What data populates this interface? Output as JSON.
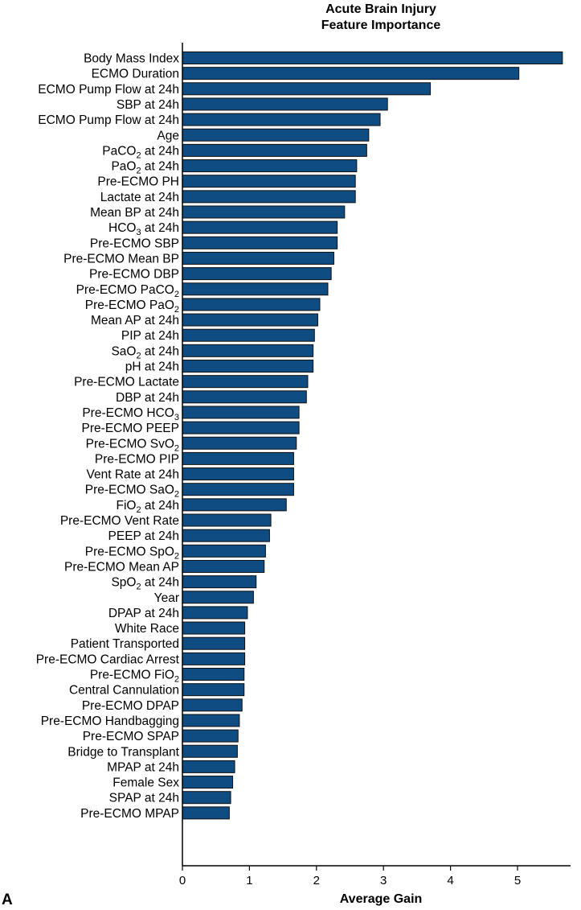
{
  "panel_label": "A",
  "chart_data": {
    "type": "bar",
    "orientation": "horizontal",
    "title_lines": [
      "Acute Brain Injury",
      "Feature Importance"
    ],
    "xlabel": "Average Gain",
    "ylabel": "",
    "xlim": [
      0,
      5.75
    ],
    "xticks": [
      "0",
      "1",
      "2",
      "3",
      "4",
      "5"
    ],
    "grid": false,
    "bar_color": "#0f4c81",
    "bar_edge_color": "#111111",
    "categories": [
      "Body Mass Index",
      "ECMO Duration",
      "ECMO Pump Flow at 24h",
      "SBP at 24h",
      "ECMO Pump Flow at 24h",
      "Age",
      "PaCO2 at 24h",
      "PaO2 at 24h",
      "Pre-ECMO PH",
      "Lactate at 24h",
      "Mean BP at 24h",
      "HCO3 at 24h",
      "Pre-ECMO SBP",
      "Pre-ECMO Mean BP",
      "Pre-ECMO DBP",
      "Pre-ECMO PaCO2",
      "Pre-ECMO PaO2",
      "Mean AP at 24h",
      "PIP at 24h",
      "SaO2 at 24h",
      "pH at 24h",
      "Pre-ECMO Lactate",
      "DBP at 24h",
      "Pre-ECMO HCO3",
      "Pre-ECMO PEEP",
      "Pre-ECMO SvO2",
      "Pre-ECMO PIP",
      "Vent Rate at 24h",
      "Pre-ECMO SaO2",
      "FiO2 at 24h",
      "Pre-ECMO Vent Rate",
      "PEEP at 24h",
      "Pre-ECMO SpO2",
      "Pre-ECMO Mean AP",
      "SpO2 at 24h",
      "Year",
      "DPAP at 24h",
      "White Race",
      "Patient Transported",
      "Pre-ECMO Cardiac Arrest",
      "Pre-ECMO FiO2",
      "Central Cannulation",
      "Pre-ECMO DPAP",
      "Pre-ECMO Handbagging",
      "Pre-ECMO SPAP",
      "Bridge to Transplant",
      "MPAP at 24h",
      "Female Sex",
      "SPAP at 24h",
      "Pre-ECMO MPAP"
    ],
    "values": [
      5.67,
      5.02,
      3.7,
      3.06,
      2.95,
      2.78,
      2.75,
      2.6,
      2.58,
      2.58,
      2.42,
      2.31,
      2.31,
      2.26,
      2.22,
      2.17,
      2.05,
      2.02,
      1.97,
      1.95,
      1.95,
      1.87,
      1.85,
      1.74,
      1.74,
      1.7,
      1.66,
      1.66,
      1.66,
      1.55,
      1.32,
      1.3,
      1.24,
      1.22,
      1.1,
      1.06,
      0.97,
      0.93,
      0.93,
      0.93,
      0.92,
      0.92,
      0.89,
      0.85,
      0.83,
      0.82,
      0.78,
      0.75,
      0.72,
      0.7
    ]
  }
}
